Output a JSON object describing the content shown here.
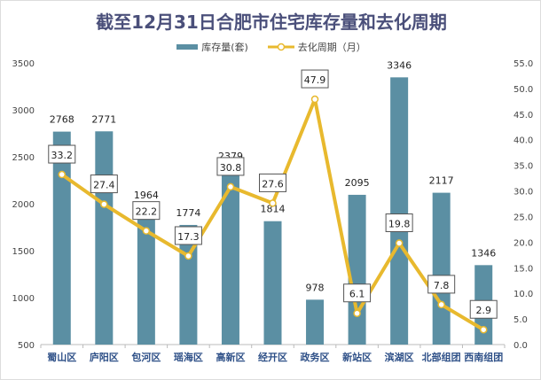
{
  "chart_data": {
    "type": "bar+line",
    "title": "截至12月31日合肥市住宅库存量和去化周期",
    "categories": [
      "蜀山区",
      "庐阳区",
      "包河区",
      "瑶海区",
      "高新区",
      "经开区",
      "政务区",
      "新站区",
      "滨湖区",
      "北部组团",
      "西南组团"
    ],
    "series": [
      {
        "name": "库存量(套)",
        "type": "bar",
        "axis": "left",
        "color": "#5b8fa3",
        "values": [
          2768,
          2771,
          1964,
          1774,
          2379,
          1814,
          978,
          2095,
          3346,
          2117,
          1346
        ]
      },
      {
        "name": "去化周期（月）",
        "type": "line",
        "axis": "right",
        "color": "#e8b92e",
        "values": [
          33.2,
          27.4,
          22.2,
          17.3,
          30.8,
          27.6,
          47.9,
          6.1,
          19.8,
          7.8,
          2.9
        ]
      }
    ],
    "left_axis": {
      "range": [
        500,
        3500
      ],
      "ticks": [
        "500",
        "1000",
        "1500",
        "2000",
        "2500",
        "3000",
        "3500"
      ]
    },
    "right_axis": {
      "range": [
        0,
        55
      ],
      "ticks": [
        "0.0",
        "5.0",
        "10.0",
        "15.0",
        "20.0",
        "25.0",
        "30.0",
        "35.0",
        "40.0",
        "45.0",
        "50.0",
        "55.0"
      ]
    },
    "legend": "top",
    "grid": false
  }
}
